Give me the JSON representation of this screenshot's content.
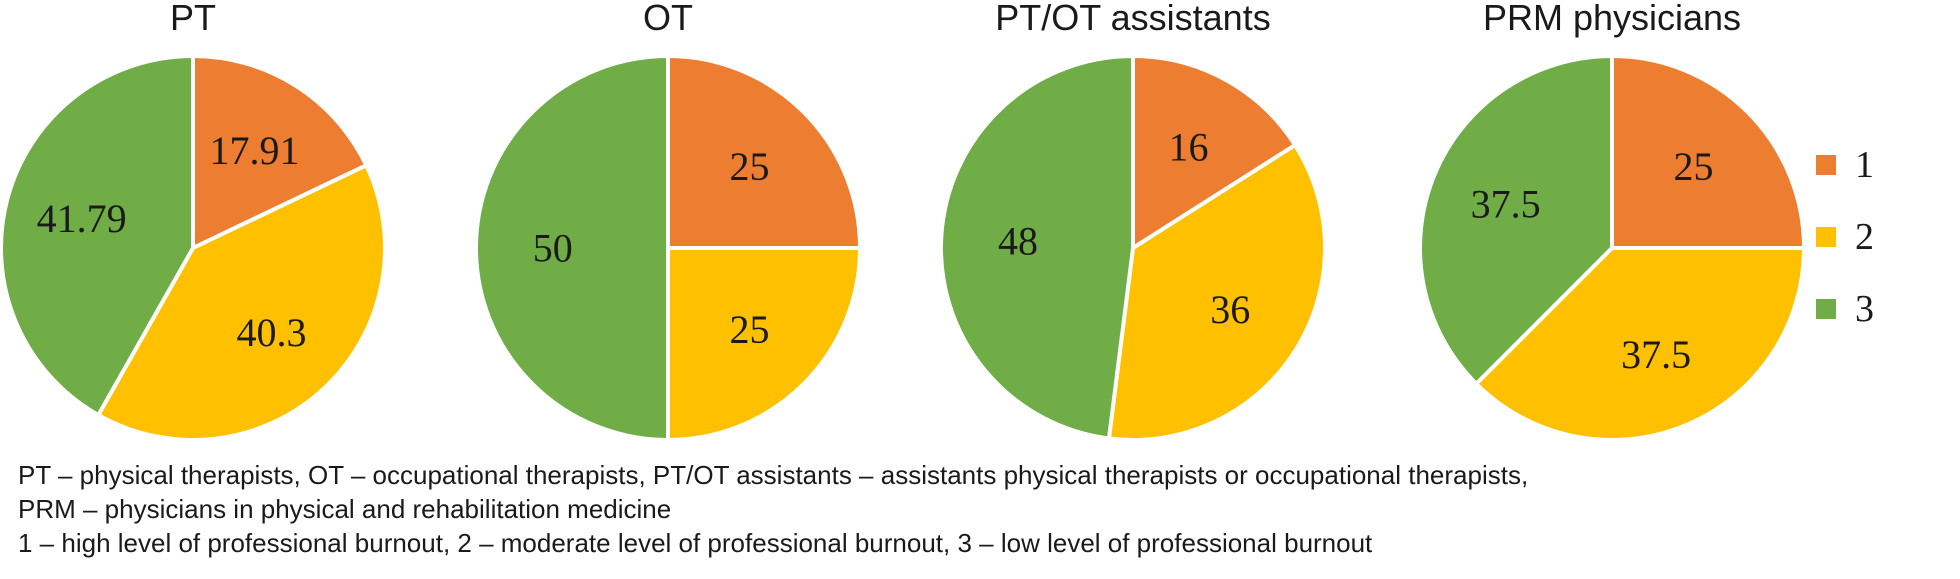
{
  "colors": {
    "1": "#ED7D31",
    "2": "#FFC000",
    "3": "#70AD47",
    "slice_border": "#ffffff"
  },
  "chart_data": [
    {
      "type": "pie",
      "title": "PT",
      "categories": [
        "1",
        "2",
        "3"
      ],
      "values": [
        17.91,
        40.3,
        41.79
      ],
      "labels": [
        "17.91",
        "40.3",
        "41.79"
      ],
      "start": "12 o'clock",
      "direction": "clockwise"
    },
    {
      "type": "pie",
      "title": "OT",
      "categories": [
        "1",
        "2",
        "3"
      ],
      "values": [
        25,
        25,
        50
      ],
      "labels": [
        "25",
        "25",
        "50"
      ],
      "start": "12 o'clock",
      "direction": "clockwise"
    },
    {
      "type": "pie",
      "title": "PT/OT assistants",
      "categories": [
        "1",
        "2",
        "3"
      ],
      "values": [
        16,
        36,
        48
      ],
      "labels": [
        "16",
        "36",
        "48"
      ],
      "start": "12 o'clock",
      "direction": "clockwise"
    },
    {
      "type": "pie",
      "title": "PRM physicians",
      "categories": [
        "1",
        "2",
        "3"
      ],
      "values": [
        25,
        37.5,
        37.5
      ],
      "labels": [
        "25",
        "37.5",
        "37.5"
      ],
      "start": "12 o'clock",
      "direction": "clockwise"
    }
  ],
  "legend": {
    "placement": "right",
    "entries": [
      "1",
      "2",
      "3"
    ]
  },
  "caption": {
    "line1": "PT – physical therapists, OT – occupational therapists, PT/OT assistants – assistants physical therapists or occupational therapists,",
    "line2": "PRM – physicians in physical and rehabilitation medicine",
    "line3": "1 – high level of professional burnout, 2 – moderate level of professional burnout, 3 – low level of professional burnout"
  }
}
